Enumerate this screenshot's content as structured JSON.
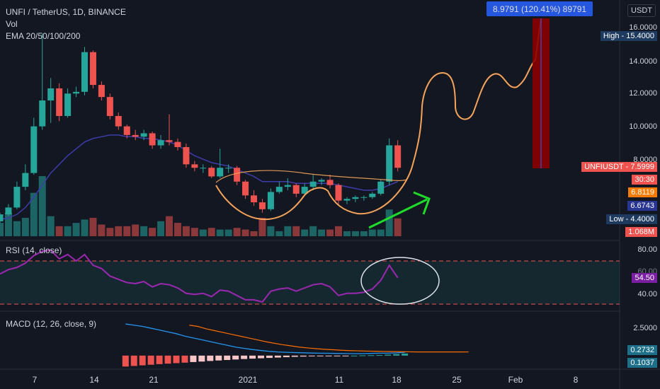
{
  "header": {
    "symbol_line": "UNFI / TetherUS, 1D, BINANCE",
    "vol_label": "Vol",
    "ema_label": "EMA 20/50/100/200",
    "rsi_label": "RSI (14, close)",
    "macd_label": "MACD (12, 26, close, 9)"
  },
  "currency_label": "USDT",
  "measure_tooltip": "8.9791 (120.41%) 89791",
  "price_axis": {
    "ticks": [
      "16.0000",
      "14.0000",
      "12.0000",
      "10.0000",
      "8.0000"
    ],
    "tags": {
      "high": "High - 15.4000",
      "symbol_price": "UNFIUSDT - 7.5999",
      "countdown": "30:30",
      "ema_value": "6.8119",
      "ema_value2": "6.6743",
      "low": "Low - 4.4000",
      "volume": "1.068M"
    }
  },
  "rsi_axis": {
    "ticks": [
      "80.00",
      "60.00",
      "40.00"
    ],
    "value": "54.50"
  },
  "macd_axis": {
    "ticks": [
      "2.5000"
    ],
    "value1": "0.2732",
    "value2": "0.1037"
  },
  "x_axis": {
    "labels": [
      "7",
      "14",
      "21",
      "2021",
      "11",
      "18",
      "25",
      "Feb",
      "8"
    ]
  },
  "colors": {
    "background": "#131722",
    "up": "#26a69a",
    "down": "#ef5350",
    "ema": "#3f3bab",
    "rsi": "#9c27b0",
    "annotation": "#f7a45a",
    "arrow": "#1fdc2c",
    "measure": "#8b0000"
  },
  "chart_data": {
    "type": "candlestick",
    "x": [
      "Dec 3",
      "Dec 4",
      "Dec 5",
      "Dec 6",
      "Dec 7",
      "Dec 8",
      "Dec 9",
      "Dec 10",
      "Dec 11",
      "Dec 12",
      "Dec 13",
      "Dec 14",
      "Dec 15",
      "Dec 16",
      "Dec 17",
      "Dec 18",
      "Dec 19",
      "Dec 20",
      "Dec 21",
      "Dec 22",
      "Dec 23",
      "Dec 24",
      "Dec 25",
      "Dec 26",
      "Dec 27",
      "Dec 28",
      "Dec 29",
      "Dec 30",
      "Dec 31",
      "Jan 1",
      "Jan 2",
      "Jan 3",
      "Jan 4",
      "Jan 5",
      "Jan 6",
      "Jan 7",
      "Jan 8",
      "Jan 9",
      "Jan 10",
      "Jan 11",
      "Jan 12",
      "Jan 13",
      "Jan 14",
      "Jan 15",
      "Jan 16",
      "Jan 17",
      "Jan 18",
      "Jan 19"
    ],
    "open": [
      4.5,
      4.9,
      5.3,
      6.5,
      7.3,
      10.0,
      11.5,
      12.2,
      10.6,
      11.9,
      12.0,
      14.3,
      12.4,
      11.7,
      10.6,
      10.0,
      9.5,
      9.4,
      9.6,
      8.9,
      9.2,
      9.1,
      8.8,
      7.8,
      7.6,
      7.6,
      7.1,
      7.6,
      7.6,
      6.8,
      6.0,
      5.6,
      5.2,
      6.2,
      6.5,
      6.6,
      6.1,
      6.5,
      6.8,
      6.9,
      6.6,
      5.7,
      5.8,
      5.9,
      5.9,
      6.1,
      6.8,
      8.9
    ],
    "close": [
      4.9,
      5.3,
      6.5,
      7.3,
      10.0,
      11.5,
      12.2,
      10.6,
      11.9,
      12.0,
      14.3,
      12.4,
      11.7,
      10.6,
      10.0,
      9.5,
      9.4,
      9.6,
      8.9,
      9.2,
      9.1,
      8.8,
      7.8,
      7.6,
      7.6,
      7.1,
      7.6,
      7.6,
      6.8,
      6.0,
      5.6,
      5.2,
      6.2,
      6.5,
      6.6,
      6.1,
      6.5,
      6.8,
      6.9,
      6.6,
      5.7,
      5.8,
      5.9,
      5.9,
      6.1,
      6.8,
      8.9,
      7.6
    ],
    "high": [
      5.0,
      5.5,
      6.8,
      7.8,
      10.5,
      15.4,
      12.8,
      12.5,
      12.2,
      12.3,
      14.6,
      14.4,
      12.6,
      11.9,
      10.8,
      10.1,
      9.8,
      9.8,
      9.7,
      9.5,
      10.7,
      9.3,
      9.0,
      8.0,
      7.8,
      7.7,
      8.7,
      7.8,
      7.7,
      6.9,
      6.3,
      5.8,
      6.4,
      6.8,
      7.0,
      6.7,
      6.7,
      7.2,
      7.0,
      7.2,
      6.7,
      5.9,
      6.0,
      6.0,
      6.2,
      6.9,
      9.3,
      9.2
    ],
    "low": [
      4.4,
      4.8,
      5.2,
      6.3,
      7.2,
      9.8,
      10.2,
      10.3,
      10.5,
      11.7,
      11.8,
      12.2,
      11.5,
      10.4,
      9.8,
      9.3,
      9.2,
      9.2,
      8.7,
      8.7,
      8.9,
      8.6,
      7.6,
      7.4,
      7.3,
      7.0,
      7.0,
      7.3,
      6.6,
      5.8,
      5.4,
      5.0,
      5.1,
      6.1,
      6.3,
      5.9,
      6.0,
      6.3,
      6.6,
      6.4,
      5.5,
      5.5,
      5.6,
      5.7,
      5.8,
      6.0,
      6.6,
      7.4
    ],
    "ema": [
      4.6,
      4.7,
      4.9,
      5.3,
      5.9,
      6.6,
      7.3,
      7.8,
      8.3,
      8.7,
      9.1,
      9.3,
      9.4,
      9.5,
      9.5,
      9.4,
      9.4,
      9.3,
      9.3,
      9.2,
      9.1,
      8.9,
      8.6,
      8.3,
      8.1,
      7.9,
      7.8,
      7.7,
      7.5,
      7.3,
      7.1,
      6.8,
      6.8,
      6.8,
      6.8,
      6.7,
      6.7,
      6.7,
      6.7,
      6.7,
      6.6,
      6.5,
      6.4,
      6.3,
      6.3,
      6.4,
      6.6,
      6.8
    ],
    "volume": [
      0.8,
      1.4,
      0.9,
      1.1,
      2.6,
      3.6,
      1.2,
      0.6,
      0.6,
      0.8,
      1.0,
      1.1,
      0.7,
      0.5,
      0.6,
      0.6,
      0.7,
      0.6,
      0.5,
      0.9,
      1.2,
      0.8,
      0.6,
      0.5,
      0.4,
      0.5,
      0.4,
      0.4,
      0.5,
      0.4,
      0.3,
      1.1,
      0.6,
      0.3,
      0.6,
      0.6,
      0.4,
      0.6,
      0.4,
      0.4,
      0.6,
      0.3,
      0.3,
      0.3,
      0.4,
      0.4,
      1.6,
      1.068
    ],
    "rsi": [
      58,
      62,
      64,
      68,
      75,
      79,
      80,
      72,
      76,
      70,
      76,
      66,
      63,
      56,
      53,
      50,
      49,
      51,
      46,
      49,
      48,
      45,
      40,
      39,
      40,
      37,
      43,
      42,
      38,
      34,
      34,
      32,
      42,
      44,
      45,
      42,
      45,
      48,
      49,
      46,
      38,
      40,
      40,
      41,
      44,
      52,
      66,
      54.5
    ],
    "rsi_levels": [
      70,
      30
    ],
    "macd": [
      2.6,
      2.5,
      2.4,
      2.25,
      2.1,
      1.95,
      1.8,
      1.6,
      1.45,
      1.3,
      1.15,
      1.0,
      0.85,
      0.7,
      0.6,
      0.5,
      0.42,
      0.35,
      0.3,
      0.27,
      0.25,
      0.23,
      0.21,
      0.2,
      0.19,
      0.18,
      0.17,
      0.16,
      0.16,
      0.18,
      0.2,
      0.2,
      0.22,
      0.27
    ],
    "macd_signal": [
      2.3,
      2.2,
      2.0,
      1.85,
      1.7,
      1.55,
      1.4,
      1.25,
      1.1,
      0.95,
      0.82,
      0.7,
      0.6,
      0.5,
      0.43,
      0.37,
      0.32,
      0.28,
      0.24,
      0.21,
      0.19,
      0.17,
      0.16,
      0.14,
      0.13,
      0.12,
      0.11,
      0.1,
      0.1,
      0.1,
      0.1,
      0.1,
      0.1,
      0.1037
    ],
    "macd_hist": [
      -0.9,
      -0.85,
      -0.8,
      -0.75,
      -0.7,
      -0.66,
      -0.62,
      -0.58,
      -0.53,
      -0.49,
      -0.44,
      -0.4,
      -0.36,
      -0.32,
      -0.28,
      -0.25,
      -0.22,
      -0.19,
      -0.16,
      -0.13,
      -0.1,
      -0.08,
      -0.06,
      -0.05,
      -0.03,
      -0.02,
      -0.01,
      0.0,
      0.02,
      0.03,
      0.05,
      0.08,
      0.12,
      0.17
    ],
    "price_range": [
      3.8,
      16.5
    ],
    "rsi_range": [
      25,
      85
    ],
    "macd_range": [
      -1.0,
      3.3
    ],
    "scale": "linear",
    "grid": false
  }
}
